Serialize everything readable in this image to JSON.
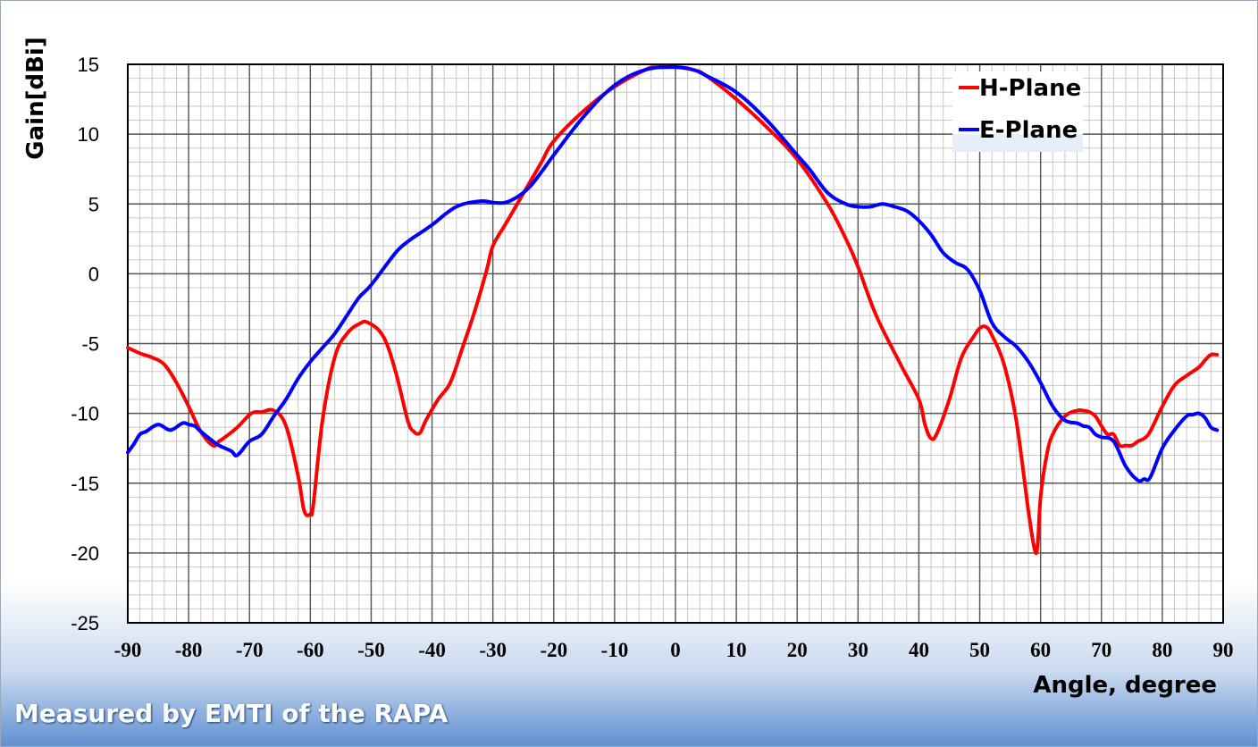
{
  "footer_text": "Measured by EMTI of the RAPA",
  "chart_data": {
    "type": "line",
    "title": "",
    "xlabel": "Angle, degree",
    "ylabel": "Gain[dBi]",
    "xlim": [
      -90,
      90
    ],
    "ylim": [
      -25,
      15
    ],
    "xticks": [
      -90,
      -80,
      -70,
      -60,
      -50,
      -40,
      -30,
      -20,
      -10,
      0,
      10,
      20,
      30,
      40,
      50,
      60,
      70,
      80,
      90
    ],
    "yticks": [
      15,
      10,
      5,
      0,
      -5,
      -10,
      -15,
      -20,
      -25
    ],
    "grid": true,
    "legend_position": "top-right",
    "series": [
      {
        "name": "H-Plane",
        "color": "#ff0000",
        "x": [
          -90,
          -88,
          -86,
          -84,
          -82,
          -80,
          -78,
          -76,
          -75,
          -74,
          -72,
          -70,
          -69,
          -68,
          -66,
          -64,
          -62,
          -61,
          -60,
          -59.5,
          -58,
          -56,
          -54,
          -52,
          -50.5,
          -48,
          -46,
          -44,
          -43,
          -42,
          -41,
          -39,
          -37,
          -35,
          -33,
          -31,
          -30,
          -28,
          -26,
          -24,
          -22,
          -20,
          -15,
          -10,
          -5,
          -3,
          0,
          3,
          5,
          10,
          15,
          20,
          25,
          28,
          30,
          33,
          37,
          40,
          41,
          42,
          43,
          45,
          47,
          49,
          50,
          51,
          52,
          54,
          56,
          58,
          59,
          59.5,
          60,
          61,
          62,
          64,
          66,
          67,
          68,
          69,
          70,
          71,
          72,
          73,
          74,
          75,
          76,
          77,
          78,
          80,
          82,
          84,
          86,
          87,
          88,
          89
        ],
        "values": [
          -5.3,
          -5.7,
          -6.0,
          -6.5,
          -7.8,
          -9.5,
          -11.3,
          -12.3,
          -12.0,
          -11.7,
          -11.0,
          -10.1,
          -9.9,
          -9.9,
          -9.8,
          -10.9,
          -14.5,
          -17.0,
          -17.2,
          -16.5,
          -10.5,
          -6.0,
          -4.3,
          -3.6,
          -3.5,
          -4.5,
          -7.0,
          -10.5,
          -11.3,
          -11.4,
          -10.5,
          -9.0,
          -7.8,
          -5.3,
          -2.7,
          0.3,
          2.0,
          3.5,
          5.0,
          6.5,
          8.0,
          9.5,
          11.7,
          13.4,
          14.6,
          14.8,
          14.8,
          14.6,
          14.2,
          12.5,
          10.5,
          8.2,
          5.0,
          2.5,
          0.5,
          -3.0,
          -6.5,
          -9.0,
          -10.8,
          -11.8,
          -11.4,
          -9.0,
          -6.0,
          -4.5,
          -3.9,
          -3.8,
          -4.4,
          -6.5,
          -10.5,
          -17.0,
          -19.7,
          -19.5,
          -16.0,
          -13.0,
          -11.5,
          -10.2,
          -9.8,
          -9.8,
          -9.9,
          -10.2,
          -10.9,
          -11.5,
          -11.5,
          -12.3,
          -12.3,
          -12.3,
          -12.0,
          -11.8,
          -11.3,
          -9.5,
          -8.0,
          -7.3,
          -6.7,
          -6.2,
          -5.8,
          -5.8
        ]
      },
      {
        "name": "E-Plane",
        "color": "#0000ff",
        "x": [
          -90,
          -89,
          -88,
          -87,
          -85,
          -83,
          -81,
          -80,
          -79,
          -78,
          -76,
          -75,
          -73,
          -72,
          -70,
          -68,
          -66,
          -64,
          -62,
          -60,
          -58,
          -56,
          -54,
          -52,
          -50,
          -46,
          -44,
          -42,
          -40,
          -36,
          -32,
          -30,
          -28,
          -26,
          -24,
          -22,
          -20,
          -15,
          -10,
          -5,
          0,
          3,
          5,
          10,
          15,
          20,
          22,
          25,
          28,
          30,
          32,
          34,
          36,
          38,
          40,
          42,
          44,
          46,
          48,
          50,
          52,
          54,
          56,
          58,
          60,
          62,
          64,
          66,
          67,
          68,
          69,
          70,
          72,
          74,
          76,
          77,
          78,
          80,
          82,
          84,
          85,
          86,
          87,
          88,
          89
        ],
        "values": [
          -12.8,
          -12.2,
          -11.5,
          -11.3,
          -10.8,
          -11.2,
          -10.7,
          -10.8,
          -10.9,
          -11.3,
          -12.0,
          -12.3,
          -12.7,
          -13.0,
          -12.0,
          -11.5,
          -10.2,
          -9.0,
          -7.5,
          -6.3,
          -5.3,
          -4.3,
          -3.0,
          -1.7,
          -0.8,
          1.5,
          2.3,
          2.9,
          3.5,
          4.8,
          5.2,
          5.1,
          5.1,
          5.5,
          6.2,
          7.3,
          8.5,
          11.3,
          13.5,
          14.6,
          14.8,
          14.6,
          14.2,
          13.0,
          11.0,
          8.5,
          7.5,
          5.8,
          5.0,
          4.8,
          4.8,
          5.0,
          4.8,
          4.5,
          3.8,
          2.8,
          1.5,
          0.8,
          0.3,
          -1.2,
          -3.5,
          -4.5,
          -5.2,
          -6.3,
          -7.8,
          -9.5,
          -10.5,
          -10.7,
          -10.9,
          -11.0,
          -11.5,
          -11.7,
          -12.0,
          -13.8,
          -14.8,
          -14.7,
          -14.6,
          -12.5,
          -11.2,
          -10.2,
          -10.1,
          -10.0,
          -10.3,
          -11.0,
          -11.2
        ]
      }
    ]
  }
}
